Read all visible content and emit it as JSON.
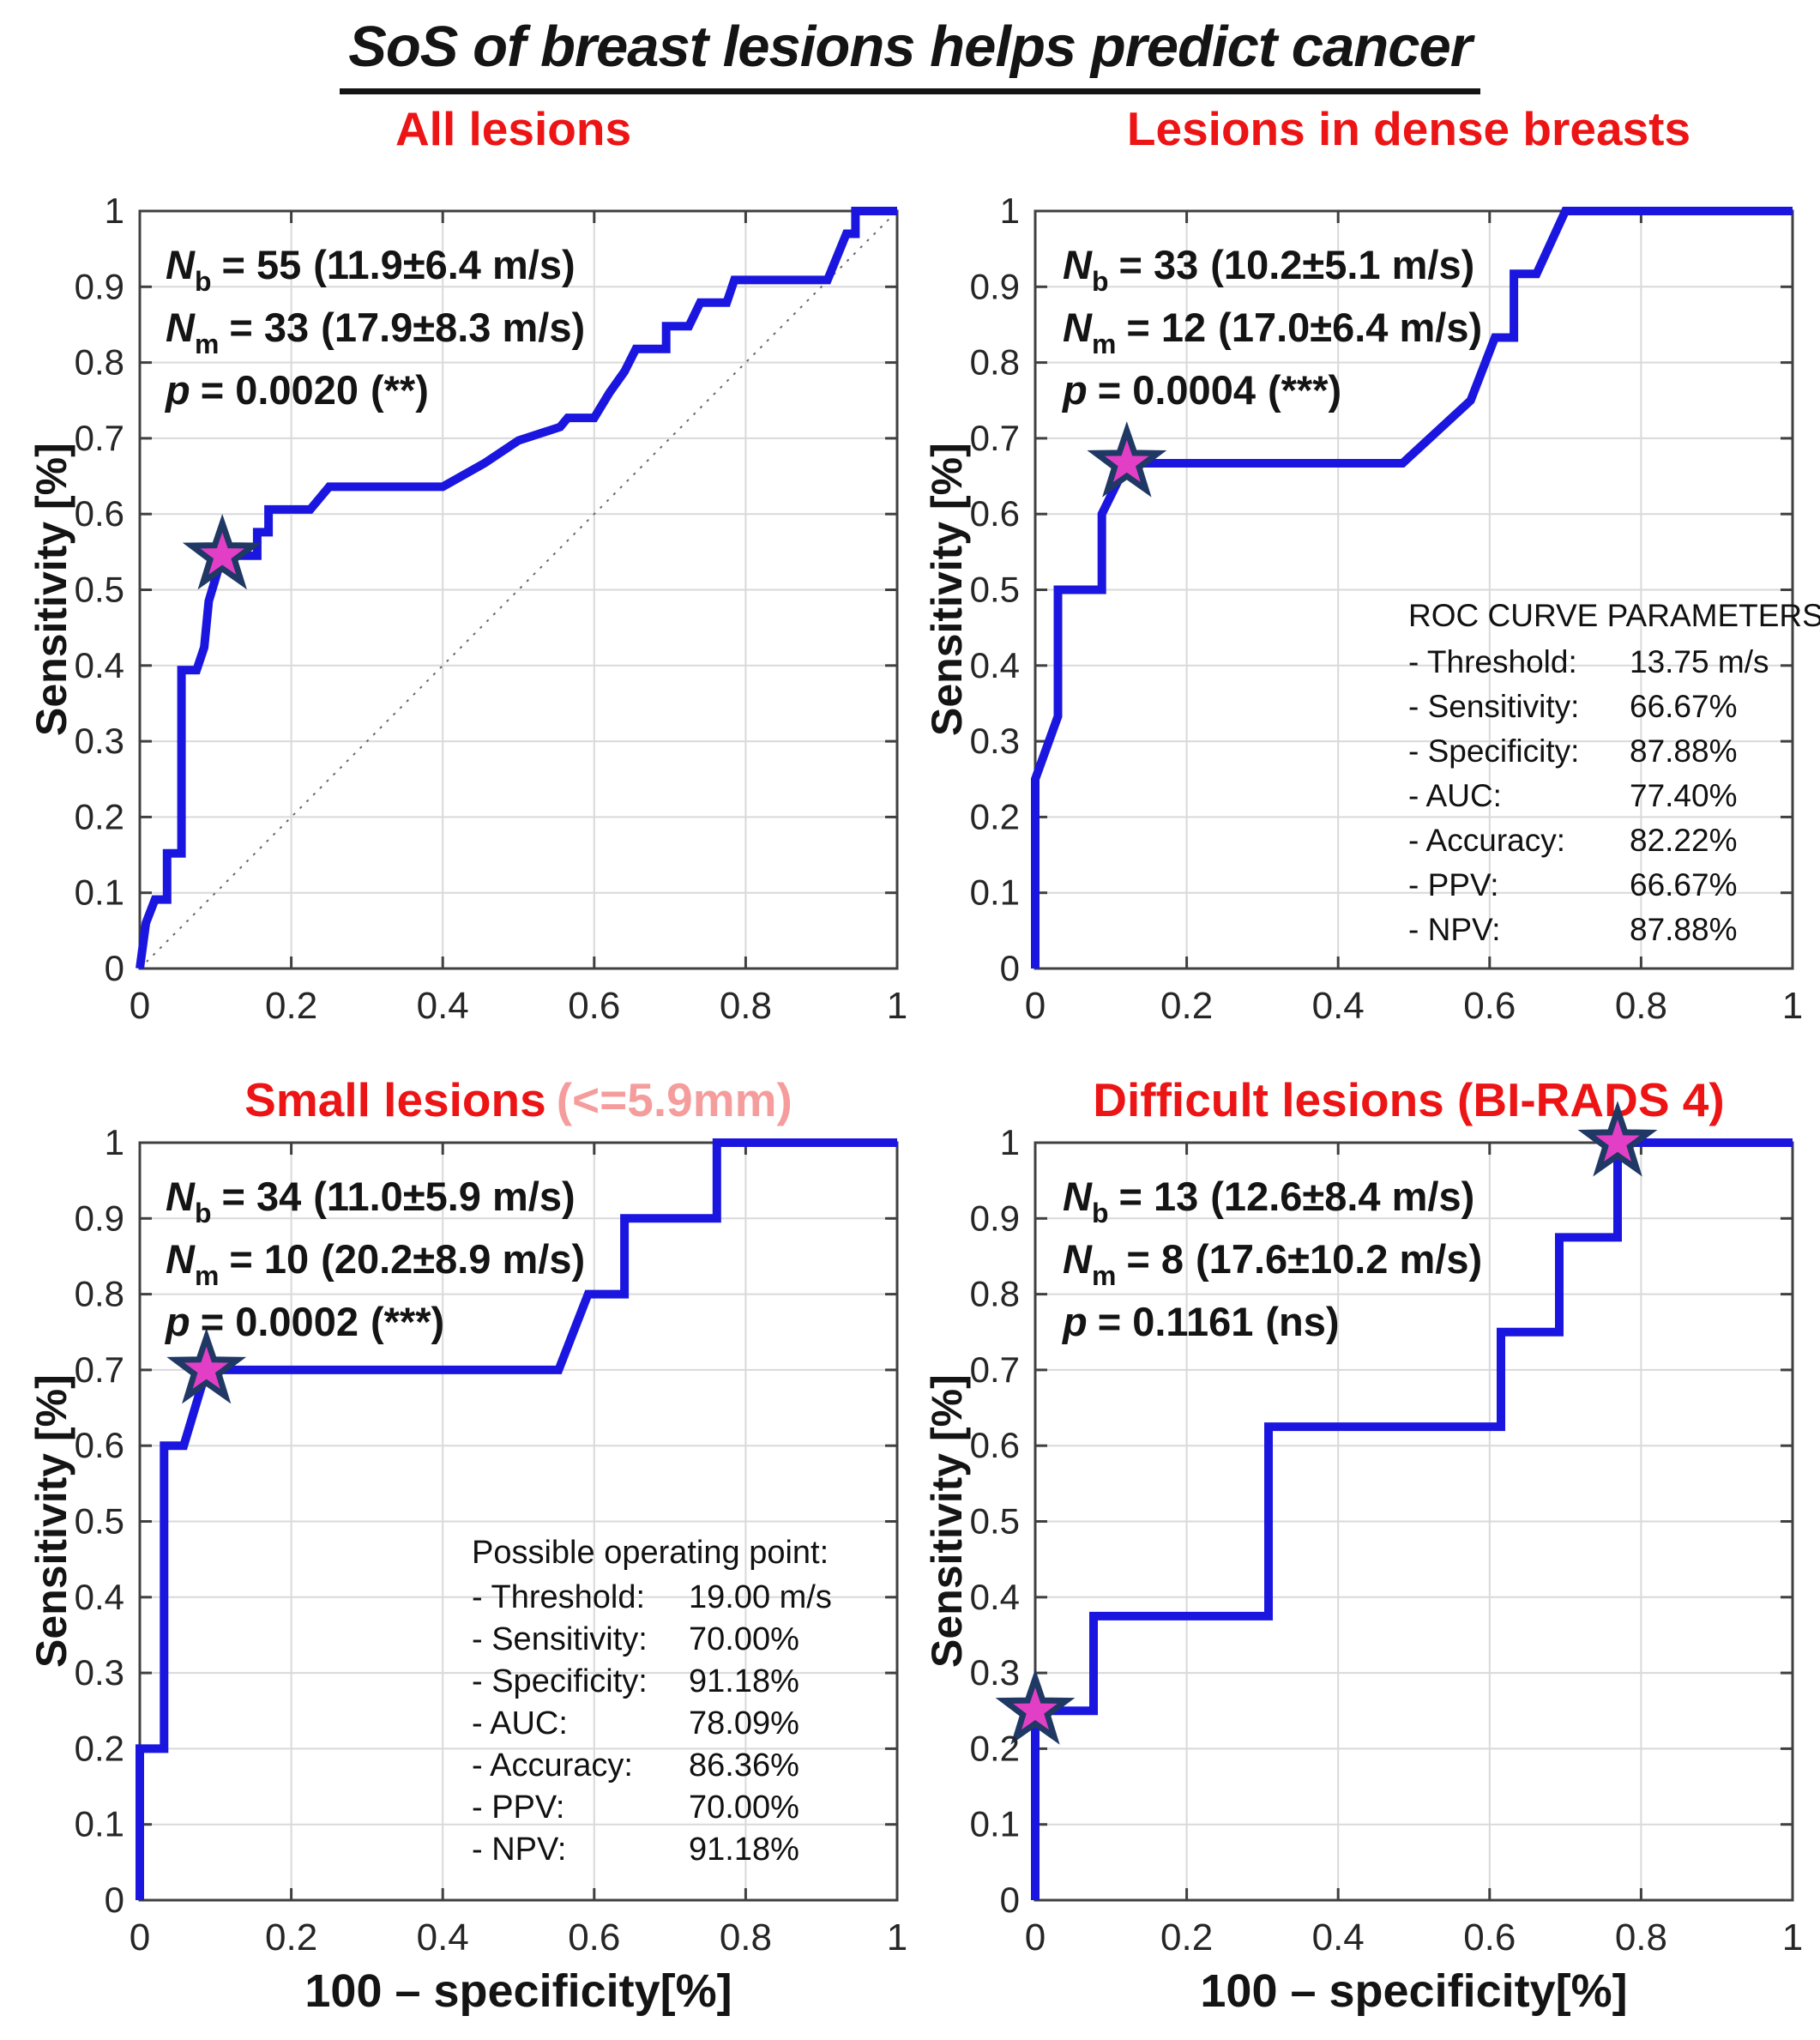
{
  "main_title": "SoS of breast lesions helps predict cancer",
  "colors": {
    "curve": "#1A16E0",
    "star_fill": "#E23FC6",
    "star_stroke": "#1F3864",
    "title_red": "#EC1414",
    "title_pink": "#F59D9D",
    "grid": "#D9D9D9",
    "axis": "#404040",
    "tick_text": "#262626"
  },
  "chart_data": [
    {
      "type": "line",
      "title": "All lesions",
      "title_suffix": "",
      "ylabel": "Sensitivity [%]",
      "xlabel": "",
      "xlim": [
        0,
        1
      ],
      "ylim": [
        0,
        1
      ],
      "grid": true,
      "diagonal": true,
      "xticks": [
        0,
        0.2,
        0.4,
        0.6,
        0.8,
        1
      ],
      "xtick_labels": [
        "0",
        "0.2",
        "0.4",
        "0.6",
        "0.8",
        "1"
      ],
      "yticks": [
        0,
        0.1,
        0.2,
        0.3,
        0.4,
        0.5,
        0.6,
        0.7,
        0.8,
        0.9,
        1
      ],
      "ytick_labels": [
        "0",
        "0.1",
        "0.2",
        "0.3",
        "0.4",
        "0.5",
        "0.6",
        "0.7",
        "0.8",
        "0.9",
        "1"
      ],
      "stats": [
        {
          "sym": "N",
          "sub": "b",
          "eq": "= 55",
          "detail": "(11.9±6.4 m/s)"
        },
        {
          "sym": "N",
          "sub": "m",
          "eq": "= 33",
          "detail": "(17.9±8.3 m/s)"
        },
        {
          "sym": "p",
          "sub": "",
          "eq": "= 0.0020",
          "detail": "(**)"
        }
      ],
      "series": [
        {
          "name": "ROC curve",
          "points": [
            [
              0,
              0
            ],
            [
              0.008,
              0.06
            ],
            [
              0.02,
              0.091
            ],
            [
              0.036,
              0.091
            ],
            [
              0.036,
              0.152
            ],
            [
              0.055,
              0.152
            ],
            [
              0.055,
              0.394
            ],
            [
              0.075,
              0.394
            ],
            [
              0.085,
              0.424
            ],
            [
              0.091,
              0.485
            ],
            [
              0.1,
              0.515
            ],
            [
              0.109,
              0.545
            ],
            [
              0.155,
              0.545
            ],
            [
              0.155,
              0.576
            ],
            [
              0.17,
              0.576
            ],
            [
              0.17,
              0.606
            ],
            [
              0.225,
              0.606
            ],
            [
              0.25,
              0.636
            ],
            [
              0.4,
              0.636
            ],
            [
              0.455,
              0.667
            ],
            [
              0.5,
              0.697
            ],
            [
              0.555,
              0.715
            ],
            [
              0.565,
              0.727
            ],
            [
              0.6,
              0.727
            ],
            [
              0.62,
              0.76
            ],
            [
              0.64,
              0.788
            ],
            [
              0.655,
              0.818
            ],
            [
              0.695,
              0.818
            ],
            [
              0.695,
              0.848
            ],
            [
              0.725,
              0.848
            ],
            [
              0.74,
              0.879
            ],
            [
              0.775,
              0.879
            ],
            [
              0.785,
              0.909
            ],
            [
              0.908,
              0.909
            ],
            [
              0.933,
              0.97
            ],
            [
              0.945,
              0.97
            ],
            [
              0.945,
              1
            ],
            [
              1,
              1
            ]
          ]
        }
      ],
      "operating_points": [
        [
          0.109,
          0.545
        ]
      ],
      "params": null
    },
    {
      "type": "line",
      "title": "Lesions in dense breasts",
      "title_suffix": "",
      "ylabel": "Sensitivity [%]",
      "xlabel": "",
      "xlim": [
        0,
        1
      ],
      "ylim": [
        0,
        1
      ],
      "grid": true,
      "diagonal": false,
      "xticks": [
        0,
        0.2,
        0.4,
        0.6,
        0.8,
        1
      ],
      "xtick_labels": [
        "0",
        "0.2",
        "0.4",
        "0.6",
        "0.8",
        "1"
      ],
      "yticks": [
        0,
        0.1,
        0.2,
        0.3,
        0.4,
        0.5,
        0.6,
        0.7,
        0.8,
        0.9,
        1
      ],
      "ytick_labels": [
        "0",
        "0.1",
        "0.2",
        "0.3",
        "0.4",
        "0.5",
        "0.6",
        "0.7",
        "0.8",
        "0.9",
        "1"
      ],
      "stats": [
        {
          "sym": "N",
          "sub": "b",
          "eq": "= 33",
          "detail": "(10.2±5.1 m/s)"
        },
        {
          "sym": "N",
          "sub": "m",
          "eq": "= 12",
          "detail": "(17.0±6.4 m/s)"
        },
        {
          "sym": "p",
          "sub": "",
          "eq": "= 0.0004",
          "detail": "(***)"
        }
      ],
      "series": [
        {
          "name": "ROC curve",
          "points": [
            [
              0,
              0
            ],
            [
              0,
              0.25
            ],
            [
              0.03,
              0.333
            ],
            [
              0.03,
              0.5
            ],
            [
              0.088,
              0.5
            ],
            [
              0.088,
              0.6
            ],
            [
              0.121,
              0.667
            ],
            [
              0.485,
              0.667
            ],
            [
              0.575,
              0.75
            ],
            [
              0.607,
              0.833
            ],
            [
              0.632,
              0.833
            ],
            [
              0.632,
              0.917
            ],
            [
              0.662,
              0.917
            ],
            [
              0.7,
              1
            ],
            [
              1,
              1
            ]
          ]
        }
      ],
      "operating_points": [
        [
          0.121,
          0.667
        ]
      ],
      "params": {
        "title": "ROC CURVE PARAMETERS",
        "rows": [
          {
            "label": "- Threshold:",
            "value": "13.75 m/s"
          },
          {
            "label": "- Sensitivity:",
            "value": "66.67%"
          },
          {
            "label": "- Specificity:",
            "value": "87.88%"
          },
          {
            "label": "- AUC:",
            "value": "77.40%"
          },
          {
            "label": "- Accuracy:",
            "value": "82.22%"
          },
          {
            "label": "- PPV:",
            "value": "66.67%"
          },
          {
            "label": "- NPV:",
            "value": "87.88%"
          }
        ]
      }
    },
    {
      "type": "line",
      "title": "Small lesions",
      "title_suffix": "(<=5.9mm)",
      "ylabel": "Sensitivity [%]",
      "xlabel": "100 – specificity[%]",
      "xlim": [
        0,
        1
      ],
      "ylim": [
        0,
        1
      ],
      "grid": true,
      "diagonal": false,
      "xticks": [
        0,
        0.2,
        0.4,
        0.6,
        0.8,
        1
      ],
      "xtick_labels": [
        "0",
        "0.2",
        "0.4",
        "0.6",
        "0.8",
        "1"
      ],
      "yticks": [
        0,
        0.1,
        0.2,
        0.3,
        0.4,
        0.5,
        0.6,
        0.7,
        0.8,
        0.9,
        1
      ],
      "ytick_labels": [
        "0",
        "0.1",
        "0.2",
        "0.3",
        "0.4",
        "0.5",
        "0.6",
        "0.7",
        "0.8",
        "0.9",
        "1"
      ],
      "stats": [
        {
          "sym": "N",
          "sub": "b",
          "eq": "= 34",
          "detail": "(11.0±5.9 m/s)"
        },
        {
          "sym": "N",
          "sub": "m",
          "eq": "= 10",
          "detail": "(20.2±8.9 m/s)"
        },
        {
          "sym": "p",
          "sub": "",
          "eq": "= 0.0002",
          "detail": "(***)"
        }
      ],
      "series": [
        {
          "name": "ROC curve",
          "points": [
            [
              0,
              0
            ],
            [
              0,
              0.2
            ],
            [
              0.032,
              0.2
            ],
            [
              0.032,
              0.6
            ],
            [
              0.058,
              0.6
            ],
            [
              0.088,
              0.7
            ],
            [
              0.553,
              0.7
            ],
            [
              0.592,
              0.8
            ],
            [
              0.64,
              0.8
            ],
            [
              0.64,
              0.9
            ],
            [
              0.762,
              0.9
            ],
            [
              0.762,
              1
            ],
            [
              1,
              1
            ]
          ]
        }
      ],
      "operating_points": [
        [
          0.088,
          0.7
        ]
      ],
      "params": {
        "title": "Possible operating point:",
        "rows": [
          {
            "label": "- Threshold:",
            "value": "19.00 m/s"
          },
          {
            "label": "- Sensitivity:",
            "value": "70.00%"
          },
          {
            "label": "- Specificity:",
            "value": "91.18%"
          },
          {
            "label": "- AUC:",
            "value": "78.09%"
          },
          {
            "label": "- Accuracy:",
            "value": "86.36%"
          },
          {
            "label": "- PPV:",
            "value": "70.00%"
          },
          {
            "label": "- NPV:",
            "value": "91.18%"
          }
        ]
      }
    },
    {
      "type": "line",
      "title": "Difficult lesions (BI-RADS 4)",
      "title_suffix": "",
      "ylabel": "Sensitivity [%]",
      "xlabel": "100 – specificity[%]",
      "xlim": [
        0,
        1
      ],
      "ylim": [
        0,
        1
      ],
      "grid": true,
      "diagonal": false,
      "xticks": [
        0,
        0.2,
        0.4,
        0.6,
        0.8,
        1
      ],
      "xtick_labels": [
        "0",
        "0.2",
        "0.4",
        "0.6",
        "0.8",
        "1"
      ],
      "yticks": [
        0,
        0.1,
        0.2,
        0.3,
        0.4,
        0.5,
        0.6,
        0.7,
        0.8,
        0.9,
        1
      ],
      "ytick_labels": [
        "0",
        "0.1",
        "0.2",
        "0.3",
        "0.4",
        "0.5",
        "0.6",
        "0.7",
        "0.8",
        "0.9",
        "1"
      ],
      "stats": [
        {
          "sym": "N",
          "sub": "b",
          "eq": "= 13",
          "detail": "(12.6±8.4 m/s)"
        },
        {
          "sym": "N",
          "sub": "m",
          "eq": "= 8",
          "detail": "(17.6±10.2 m/s)"
        },
        {
          "sym": "p",
          "sub": "",
          "eq": "= 0.1161",
          "detail": "(ns)"
        }
      ],
      "series": [
        {
          "name": "ROC curve",
          "points": [
            [
              0,
              0
            ],
            [
              0,
              0.25
            ],
            [
              0.077,
              0.25
            ],
            [
              0.077,
              0.375
            ],
            [
              0.308,
              0.375
            ],
            [
              0.308,
              0.625
            ],
            [
              0.615,
              0.625
            ],
            [
              0.615,
              0.75
            ],
            [
              0.692,
              0.75
            ],
            [
              0.692,
              0.875
            ],
            [
              0.769,
              0.875
            ],
            [
              0.769,
              1
            ],
            [
              1,
              1
            ]
          ]
        }
      ],
      "operating_points": [
        [
          0,
          0.25
        ],
        [
          0.769,
          1
        ]
      ],
      "params": null
    }
  ]
}
